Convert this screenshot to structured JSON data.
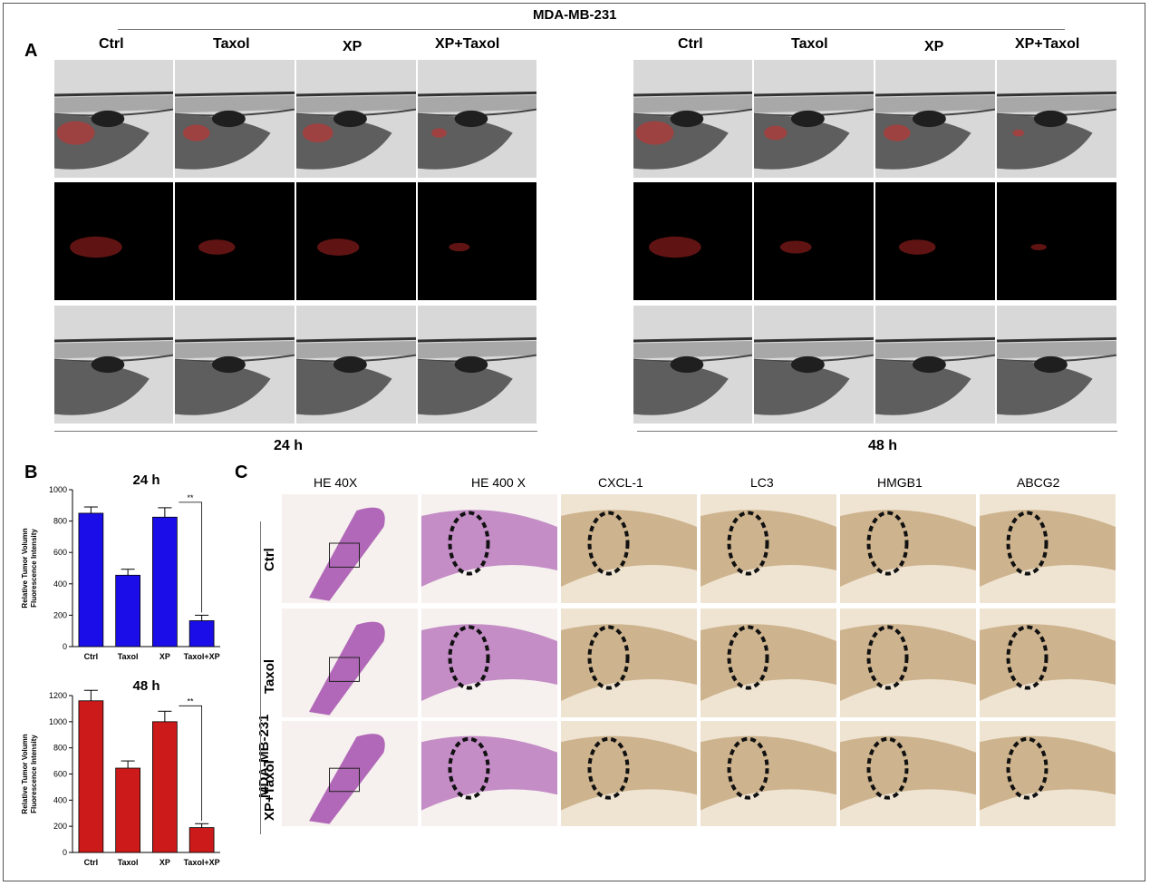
{
  "figure": {
    "cell_line": "MDA-MB-231",
    "panel_letters": {
      "a": "A",
      "b": "B",
      "c": "C"
    },
    "panelA": {
      "columns_24h": [
        "Ctrl",
        "Taxol",
        "XP",
        "XP+Taxol"
      ],
      "columns_48h": [
        "Ctrl",
        "Taxol",
        "XP",
        "XP+Taxol"
      ],
      "time_24h": "24 h",
      "time_48h": "48 h"
    },
    "panelC": {
      "columns": [
        "HE 40X",
        "HE 400 X",
        "CXCL-1",
        "LC3",
        "HMGB1",
        "ABCG2"
      ],
      "rows": [
        "Ctrl",
        "Taxol",
        "XP+Taxol"
      ],
      "row_group_label": "MDA-MB-231"
    },
    "colors": {
      "bar_24h": "#1a0de8",
      "bar_48h": "#cc1a1a",
      "fluorescence": "#d42a2a",
      "he_stain": "#9a3aa5",
      "ihc_stain": "#b08a55"
    }
  },
  "chart_data": [
    {
      "type": "bar",
      "title": "24 h",
      "ylabel": "Relative Tumor Volumn\nFluorescence Intensity",
      "ylabel_lines": [
        "Relative Tumor Volumn",
        "Fluorescence Intensity"
      ],
      "categories": [
        "Ctrl",
        "Taxol",
        "XP",
        "Taxol+XP"
      ],
      "values": [
        850,
        455,
        825,
        165
      ],
      "errors": [
        40,
        38,
        60,
        35
      ],
      "ylim": [
        0,
        1000
      ],
      "yticks": [
        0,
        200,
        400,
        600,
        800,
        1000
      ],
      "significance": "**",
      "color": "#1a0de8"
    },
    {
      "type": "bar",
      "title": "48 h",
      "ylabel": "Relative Tumor Volumn\nFluorescence Intensity",
      "ylabel_lines": [
        "Relative Tumor Volumn",
        "Fluorescence Intensity"
      ],
      "categories": [
        "Ctrl",
        "Taxol",
        "XP",
        "Taxol+XP"
      ],
      "values": [
        1160,
        645,
        1000,
        190
      ],
      "errors": [
        80,
        55,
        80,
        30
      ],
      "ylim": [
        0,
        1200
      ],
      "yticks": [
        0,
        200,
        400,
        600,
        800,
        1000,
        1200
      ],
      "significance": "**",
      "color": "#cc1a1a"
    }
  ]
}
